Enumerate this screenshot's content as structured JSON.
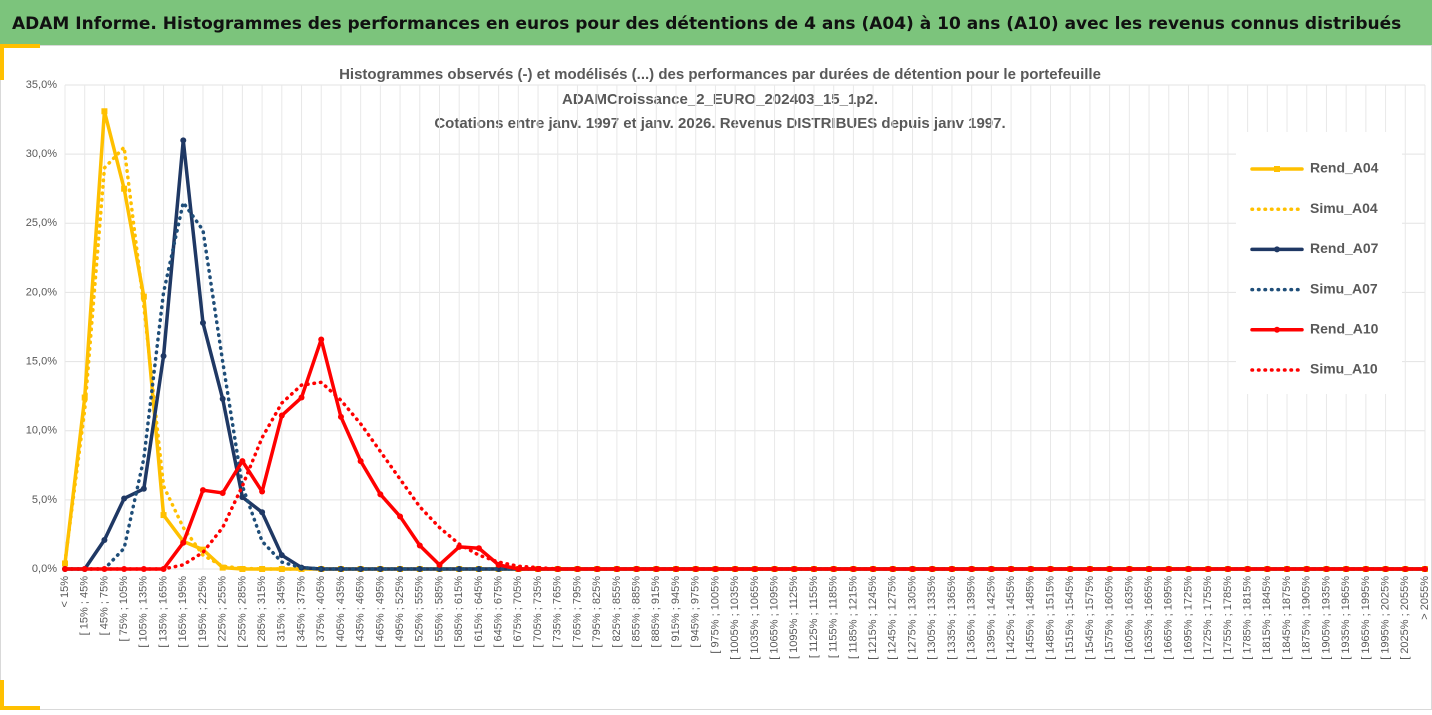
{
  "header": {
    "title": "ADAM Informe. Histogrammes des performances en euros pour des détentions de 4 ans (A04) à 10 ans (A10) avec les revenus connus distribués"
  },
  "chart_data": {
    "type": "line",
    "title": [
      "Histogrammes observés (-) et modélisés (...) des performances par durées de détention pour le portefeuille",
      "ADAMCroissance_2_EURO_202403_15_1p2.",
      "Cotations entre janv. 1997 et janv. 2026. Revenus DISTRIBUES depuis janv 1997."
    ],
    "categories": [
      "< 15%",
      "[ 15% ; 45%",
      "[ 45% ; 75%",
      "[ 75% ; 105%",
      "[ 105% ; 135%",
      "[ 135% ; 165%",
      "[ 165% ; 195%",
      "[ 195% ; 225%",
      "[ 225% ; 255%",
      "[ 255% ; 285%",
      "[ 285% ; 315%",
      "[ 315% ; 345%",
      "[ 345% ; 375%",
      "[ 375% ; 405%",
      "[ 405% ; 435%",
      "[ 435% ; 465%",
      "[ 465% ; 495%",
      "[ 495% ; 525%",
      "[ 525% ; 555%",
      "[ 555% ; 585%",
      "[ 585% ; 615%",
      "[ 615% ; 645%",
      "[ 645% ; 675%",
      "[ 675% ; 705%",
      "[ 705% ; 735%",
      "[ 735% ; 765%",
      "[ 765% ; 795%",
      "[ 795% ; 825%",
      "[ 825% ; 855%",
      "[ 855% ; 885%",
      "[ 885% ; 915%",
      "[ 915% ; 945%",
      "[ 945% ; 975%",
      "[ 975% ; 1005%",
      "[ 1005% ; 1035%",
      "[ 1035% ; 1065%",
      "[ 1065% ; 1095%",
      "[ 1095% ; 1125%",
      "[ 1125% ; 1155%",
      "[ 1155% ; 1185%",
      "[ 1185% ; 1215%",
      "[ 1215% ; 1245%",
      "[ 1245% ; 1275%",
      "[ 1275% ; 1305%",
      "[ 1305% ; 1335%",
      "[ 1335% ; 1365%",
      "[ 1365% ; 1395%",
      "[ 1395% ; 1425%",
      "[ 1425% ; 1455%",
      "[ 1455% ; 1485%",
      "[ 1485% ; 1515%",
      "[ 1515% ; 1545%",
      "[ 1545% ; 1575%",
      "[ 1575% ; 1605%",
      "[ 1605% ; 1635%",
      "[ 1635% ; 1665%",
      "[ 1665% ; 1695%",
      "[ 1695% ; 1725%",
      "[ 1725% ; 1755%",
      "[ 1755% ; 1785%",
      "[ 1785% ; 1815%",
      "[ 1815% ; 1845%",
      "[ 1845% ; 1875%",
      "[ 1875% ; 1905%",
      "[ 1905% ; 1935%",
      "[ 1935% ; 1965%",
      "[ 1965% ; 1995%",
      "[ 1995% ; 2025%",
      "[ 2025% ; 2055%",
      "> 2055%"
    ],
    "series": [
      {
        "name": "Rend_A04",
        "color": "#ffc000",
        "style": "solid",
        "marker": "square",
        "values": [
          0.4,
          12.4,
          33.1,
          27.5,
          19.7,
          3.9,
          2.0,
          1.4,
          0.1,
          0,
          0,
          0,
          0,
          0,
          0,
          0,
          0,
          0,
          0,
          0,
          0,
          0,
          0,
          0,
          0,
          0,
          0,
          0,
          0,
          0,
          0,
          0,
          0,
          0,
          0,
          0,
          0,
          0,
          0,
          0,
          0,
          0,
          0,
          0,
          0,
          0,
          0,
          0,
          0,
          0,
          0,
          0,
          0,
          0,
          0,
          0,
          0,
          0,
          0,
          0,
          0,
          0,
          0,
          0,
          0,
          0,
          0,
          0,
          0,
          0
        ]
      },
      {
        "name": "Simu_A04",
        "color": "#ffc000",
        "style": "dotted",
        "marker": "none",
        "values": [
          0.5,
          11.5,
          29,
          30.5,
          19,
          6,
          3,
          1,
          0.2,
          0.05,
          0,
          0,
          0,
          0,
          0,
          0,
          0,
          0,
          0,
          0,
          0,
          0,
          0,
          0,
          0,
          0,
          0,
          0,
          0,
          0,
          0,
          0,
          0,
          0,
          0,
          0,
          0,
          0,
          0,
          0,
          0,
          0,
          0,
          0,
          0,
          0,
          0,
          0,
          0,
          0,
          0,
          0,
          0,
          0,
          0,
          0,
          0,
          0,
          0,
          0,
          0,
          0,
          0,
          0,
          0,
          0,
          0,
          0,
          0,
          0
        ]
      },
      {
        "name": "Rend_A07",
        "color": "#1f3864",
        "style": "solid",
        "marker": "circle",
        "values": [
          0,
          0,
          2.1,
          5.1,
          5.8,
          15.4,
          31.0,
          17.8,
          12.3,
          5.2,
          4.1,
          1.0,
          0.1,
          0,
          0,
          0,
          0,
          0,
          0,
          0,
          0,
          0,
          0,
          0,
          0,
          0,
          0,
          0,
          0,
          0,
          0,
          0,
          0,
          0,
          0,
          0,
          0,
          0,
          0,
          0,
          0,
          0,
          0,
          0,
          0,
          0,
          0,
          0,
          0,
          0,
          0,
          0,
          0,
          0,
          0,
          0,
          0,
          0,
          0,
          0,
          0,
          0,
          0,
          0,
          0,
          0,
          0,
          0,
          0,
          0
        ]
      },
      {
        "name": "Simu_A07",
        "color": "#1f4e79",
        "style": "dotted",
        "marker": "none",
        "values": [
          0,
          0,
          0,
          1.5,
          8,
          20,
          26.5,
          24.5,
          15,
          6,
          2,
          0.5,
          0.1,
          0,
          0,
          0,
          0,
          0,
          0,
          0,
          0,
          0,
          0,
          0,
          0,
          0,
          0,
          0,
          0,
          0,
          0,
          0,
          0,
          0,
          0,
          0,
          0,
          0,
          0,
          0,
          0,
          0,
          0,
          0,
          0,
          0,
          0,
          0,
          0,
          0,
          0,
          0,
          0,
          0,
          0,
          0,
          0,
          0,
          0,
          0,
          0,
          0,
          0,
          0,
          0,
          0,
          0,
          0,
          0,
          0
        ]
      },
      {
        "name": "Rend_A10",
        "color": "#ff0000",
        "style": "solid",
        "marker": "circle",
        "values": [
          0,
          0,
          0,
          0,
          0,
          0,
          1.9,
          5.7,
          5.5,
          7.8,
          5.6,
          11.1,
          12.4,
          16.6,
          11.0,
          7.8,
          5.4,
          3.8,
          1.7,
          0.3,
          1.6,
          1.5,
          0.3,
          0,
          0,
          0,
          0,
          0,
          0,
          0,
          0,
          0,
          0,
          0,
          0,
          0,
          0,
          0,
          0,
          0,
          0,
          0,
          0,
          0,
          0,
          0,
          0,
          0,
          0,
          0,
          0,
          0,
          0,
          0,
          0,
          0,
          0,
          0,
          0,
          0,
          0,
          0,
          0,
          0,
          0,
          0,
          0,
          0,
          0,
          0
        ]
      },
      {
        "name": "Simu_A10",
        "color": "#ff0000",
        "style": "dotted",
        "marker": "none",
        "values": [
          0,
          0,
          0,
          0,
          0,
          0,
          0.3,
          1.2,
          3,
          6,
          9.5,
          12,
          13.3,
          13.5,
          12.2,
          10.5,
          8.5,
          6.5,
          4.5,
          3,
          1.8,
          1,
          0.5,
          0.2,
          0.1,
          0,
          0,
          0,
          0,
          0,
          0,
          0,
          0,
          0,
          0,
          0,
          0,
          0,
          0,
          0,
          0,
          0,
          0,
          0,
          0,
          0,
          0,
          0,
          0,
          0,
          0,
          0,
          0,
          0,
          0,
          0,
          0,
          0,
          0,
          0,
          0,
          0,
          0,
          0,
          0,
          0,
          0,
          0,
          0,
          0
        ]
      }
    ],
    "ylim": [
      0,
      35
    ],
    "yticks": [
      {
        "value": 0,
        "label": "0,0%"
      },
      {
        "value": 5,
        "label": "5,0%"
      },
      {
        "value": 10,
        "label": "10,0%"
      },
      {
        "value": 15,
        "label": "15,0%"
      },
      {
        "value": 20,
        "label": "20,0%"
      },
      {
        "value": 25,
        "label": "25,0%"
      },
      {
        "value": 30,
        "label": "30,0%"
      },
      {
        "value": 35,
        "label": "35,0%"
      }
    ],
    "grid": true,
    "legend": "right"
  }
}
